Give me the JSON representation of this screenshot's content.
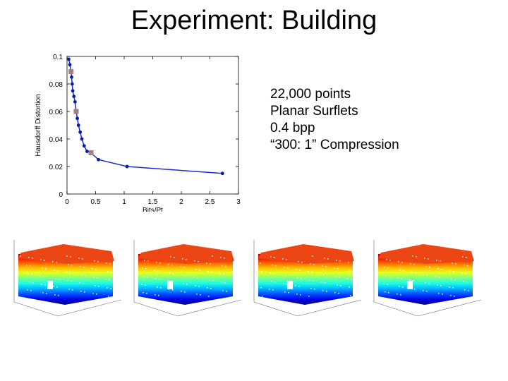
{
  "slide": {
    "title": "Experiment: Building",
    "bullets": [
      "22,000 points",
      "Planar Surflets",
      "0.4 bpp",
      "“300: 1” Compression"
    ]
  },
  "colors": {
    "line": "#1a2ad6",
    "marker": "#0a1aa8",
    "highlight_marker": "#a08080",
    "axes": "#000000",
    "grid": "none"
  },
  "chart_data": {
    "type": "line",
    "title": "",
    "xlabel": "Bits/Pt",
    "ylabel": "Hausdorff Distortion",
    "xlim": [
      0,
      3
    ],
    "ylim": [
      0,
      0.1
    ],
    "xticks": [
      "0",
      "0.5",
      "1",
      "1.5",
      "2",
      "2.5",
      "3"
    ],
    "yticks": [
      "0",
      "0.02",
      "0.04",
      "0.06",
      "0.08",
      "0.1"
    ],
    "grid": false,
    "series": [
      {
        "x": [
          0.03,
          0.05,
          0.07,
          0.08,
          0.09,
          0.1,
          0.12,
          0.14,
          0.16,
          0.18,
          0.2,
          0.23,
          0.26,
          0.3,
          0.35,
          0.42,
          0.55,
          1.05,
          2.72
        ],
        "y": [
          0.098,
          0.094,
          0.089,
          0.085,
          0.08,
          0.075,
          0.071,
          0.067,
          0.06,
          0.055,
          0.05,
          0.045,
          0.04,
          0.035,
          0.031,
          0.03,
          0.025,
          0.02,
          0.015
        ]
      }
    ],
    "highlighted_points": [
      {
        "x": 0.07,
        "y": 0.089
      },
      {
        "x": 0.16,
        "y": 0.06
      },
      {
        "x": 0.42,
        "y": 0.03
      }
    ]
  },
  "thumbnails": [
    {
      "name": "building-render-1"
    },
    {
      "name": "building-render-2"
    },
    {
      "name": "building-render-3"
    },
    {
      "name": "building-render-4"
    }
  ]
}
